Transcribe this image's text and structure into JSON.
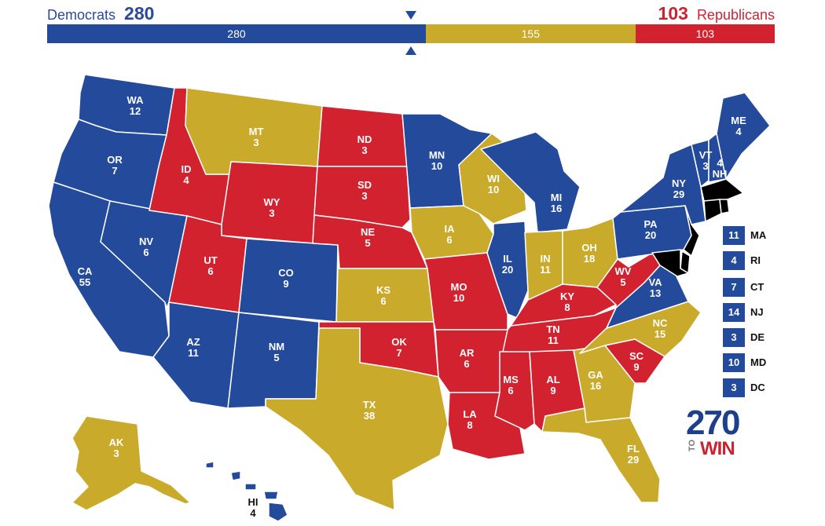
{
  "header": {
    "dem_name": "Democrats",
    "dem_total": "280",
    "rep_name": "Republicans",
    "rep_total": "103"
  },
  "bar": {
    "dem": "280",
    "tossup": "155",
    "rep": "103"
  },
  "bar_values": {
    "dem": 280,
    "tossup": 155,
    "rep": 103
  },
  "colors": {
    "dem": "#244a9c",
    "tossup": "#c9aa2b",
    "rep": "#d3222f",
    "marker": "#244a9c"
  },
  "states": {
    "WA": {
      "abbr": "WA",
      "ev": "12",
      "party": "dem"
    },
    "OR": {
      "abbr": "OR",
      "ev": "7",
      "party": "dem"
    },
    "CA": {
      "abbr": "CA",
      "ev": "55",
      "party": "dem"
    },
    "NV": {
      "abbr": "NV",
      "ev": "6",
      "party": "dem"
    },
    "ID": {
      "abbr": "ID",
      "ev": "4",
      "party": "rep"
    },
    "MT": {
      "abbr": "MT",
      "ev": "3",
      "party": "tossup"
    },
    "WY": {
      "abbr": "WY",
      "ev": "3",
      "party": "rep"
    },
    "UT": {
      "abbr": "UT",
      "ev": "6",
      "party": "rep"
    },
    "AZ": {
      "abbr": "AZ",
      "ev": "11",
      "party": "dem"
    },
    "CO": {
      "abbr": "CO",
      "ev": "9",
      "party": "dem"
    },
    "NM": {
      "abbr": "NM",
      "ev": "5",
      "party": "dem"
    },
    "ND": {
      "abbr": "ND",
      "ev": "3",
      "party": "rep"
    },
    "SD": {
      "abbr": "SD",
      "ev": "3",
      "party": "rep"
    },
    "NE": {
      "abbr": "NE",
      "ev": "5",
      "party": "rep"
    },
    "KS": {
      "abbr": "KS",
      "ev": "6",
      "party": "tossup"
    },
    "OK": {
      "abbr": "OK",
      "ev": "7",
      "party": "rep"
    },
    "TX": {
      "abbr": "TX",
      "ev": "38",
      "party": "tossup"
    },
    "MN": {
      "abbr": "MN",
      "ev": "10",
      "party": "dem"
    },
    "IA": {
      "abbr": "IA",
      "ev": "6",
      "party": "tossup"
    },
    "MO": {
      "abbr": "MO",
      "ev": "10",
      "party": "rep"
    },
    "AR": {
      "abbr": "AR",
      "ev": "6",
      "party": "rep"
    },
    "LA": {
      "abbr": "LA",
      "ev": "8",
      "party": "rep"
    },
    "WI": {
      "abbr": "WI",
      "ev": "10",
      "party": "tossup"
    },
    "IL": {
      "abbr": "IL",
      "ev": "20",
      "party": "dem"
    },
    "MI": {
      "abbr": "MI",
      "ev": "16",
      "party": "dem"
    },
    "IN": {
      "abbr": "IN",
      "ev": "11",
      "party": "tossup"
    },
    "OH": {
      "abbr": "OH",
      "ev": "18",
      "party": "tossup"
    },
    "KY": {
      "abbr": "KY",
      "ev": "8",
      "party": "rep"
    },
    "TN": {
      "abbr": "TN",
      "ev": "11",
      "party": "rep"
    },
    "MS": {
      "abbr": "MS",
      "ev": "6",
      "party": "rep"
    },
    "AL": {
      "abbr": "AL",
      "ev": "9",
      "party": "rep"
    },
    "GA": {
      "abbr": "GA",
      "ev": "16",
      "party": "tossup"
    },
    "FL": {
      "abbr": "FL",
      "ev": "29",
      "party": "tossup"
    },
    "SC": {
      "abbr": "SC",
      "ev": "9",
      "party": "rep"
    },
    "NC": {
      "abbr": "NC",
      "ev": "15",
      "party": "tossup"
    },
    "VA": {
      "abbr": "VA",
      "ev": "13",
      "party": "dem"
    },
    "WV": {
      "abbr": "WV",
      "ev": "5",
      "party": "rep"
    },
    "PA": {
      "abbr": "PA",
      "ev": "20",
      "party": "dem"
    },
    "NY": {
      "abbr": "NY",
      "ev": "29",
      "party": "dem"
    },
    "VT": {
      "abbr": "VT",
      "ev": "3",
      "party": "dem"
    },
    "NH": {
      "abbr": "NH",
      "ev": "4",
      "party": "dem"
    },
    "ME": {
      "abbr": "ME",
      "ev": "4",
      "party": "dem"
    },
    "AK": {
      "abbr": "AK",
      "ev": "3",
      "party": "tossup"
    },
    "HI": {
      "abbr": "HI",
      "ev": "4",
      "party": "dem"
    }
  },
  "small_states": [
    {
      "abbr": "MA",
      "ev": "11",
      "party": "dem"
    },
    {
      "abbr": "RI",
      "ev": "4",
      "party": "dem"
    },
    {
      "abbr": "CT",
      "ev": "7",
      "party": "dem"
    },
    {
      "abbr": "NJ",
      "ev": "14",
      "party": "dem"
    },
    {
      "abbr": "DE",
      "ev": "3",
      "party": "dem"
    },
    {
      "abbr": "MD",
      "ev": "10",
      "party": "dem"
    },
    {
      "abbr": "DC",
      "ev": "3",
      "party": "dem"
    }
  ],
  "logo": {
    "num": "270",
    "to": "TO",
    "win": "WIN"
  }
}
